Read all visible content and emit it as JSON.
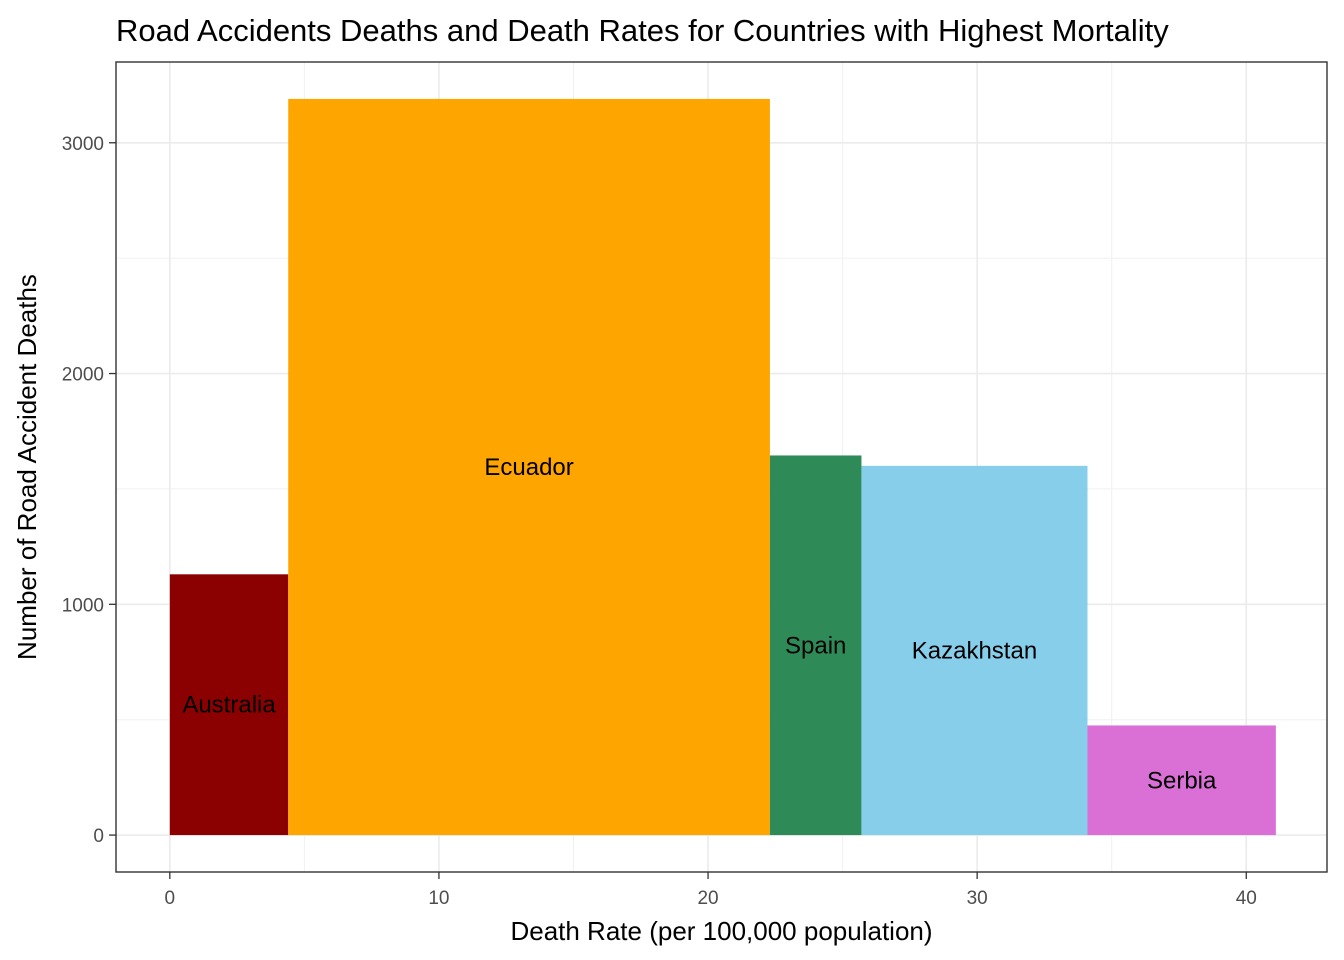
{
  "chart_data": {
    "type": "bar",
    "title": "Road Accidents Deaths and Death Rates for Countries with Highest Mortality",
    "xlabel": "Death Rate (per 100,000 population)",
    "ylabel": "Number of Road Accident Deaths",
    "xlim": [
      -2,
      43
    ],
    "ylim": [
      -160,
      3350
    ],
    "x_ticks": [
      0,
      10,
      20,
      30,
      40
    ],
    "y_ticks": [
      0,
      1000,
      2000,
      3000
    ],
    "grid": true,
    "bars": [
      {
        "name": "Australia",
        "x_start": 0.0,
        "x_end": 4.4,
        "value": 1130,
        "color": "#8B0000"
      },
      {
        "name": "Ecuador",
        "x_start": 4.4,
        "x_end": 22.3,
        "value": 3190,
        "color": "#FFA500"
      },
      {
        "name": "Spain",
        "x_start": 22.3,
        "x_end": 25.7,
        "value": 1645,
        "color": "#2E8B57"
      },
      {
        "name": "Kazakhstan",
        "x_start": 25.7,
        "x_end": 34.1,
        "value": 1600,
        "color": "#87CEEB"
      },
      {
        "name": "Serbia",
        "x_start": 34.1,
        "x_end": 41.1,
        "value": 475,
        "color": "#DA70D6"
      }
    ]
  }
}
